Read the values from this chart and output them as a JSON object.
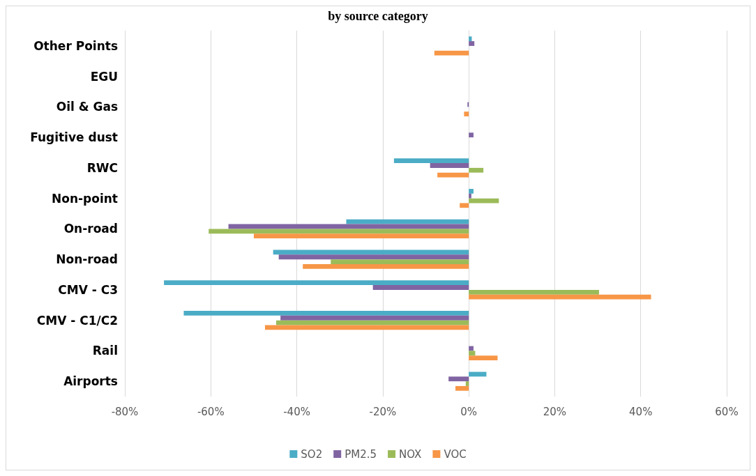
{
  "chart_data": {
    "type": "bar",
    "orientation": "horizontal",
    "title": "by source category",
    "categories": [
      "Other Points",
      "EGU",
      "Oil & Gas",
      "Fugitive dust",
      "RWC",
      "Non-point",
      "On-road",
      "Non-road",
      "CMV - C3",
      "CMV - C1/C2",
      "Rail",
      "Airports"
    ],
    "series": [
      {
        "name": "SO2",
        "color": "#4bacc6",
        "values": [
          0.7,
          0,
          0,
          0,
          -17.4,
          1.1,
          -28.5,
          -45.5,
          -70.9,
          -66.3,
          0,
          4.1
        ]
      },
      {
        "name": "PM2.5",
        "color": "#8064a2",
        "values": [
          1.3,
          0,
          -0.3,
          1.1,
          -9.0,
          0.6,
          -55.9,
          -44.2,
          -22.3,
          -43.8,
          1.1,
          -4.7
        ]
      },
      {
        "name": "NOX",
        "color": "#9bbb59",
        "values": [
          0,
          0,
          0,
          0,
          3.4,
          7.0,
          -60.5,
          -32.1,
          30.3,
          -44.8,
          1.5,
          -0.7
        ]
      },
      {
        "name": "VOC",
        "color": "#f79646",
        "values": [
          -8.0,
          0,
          -1.1,
          0,
          -7.3,
          -2.1,
          -50.0,
          -38.6,
          42.4,
          -47.4,
          6.7,
          -3.1
        ]
      }
    ],
    "xlim": [
      -80,
      60
    ],
    "xticks": [
      {
        "value": -80,
        "label": "-80%"
      },
      {
        "value": -60,
        "label": "-60%"
      },
      {
        "value": -40,
        "label": "-40%"
      },
      {
        "value": -20,
        "label": "-20%"
      },
      {
        "value": 0,
        "label": "0%"
      },
      {
        "value": 20,
        "label": "20%"
      },
      {
        "value": 40,
        "label": "40%"
      },
      {
        "value": 60,
        "label": "60%"
      }
    ],
    "grid": "x",
    "legend": "bottom"
  }
}
